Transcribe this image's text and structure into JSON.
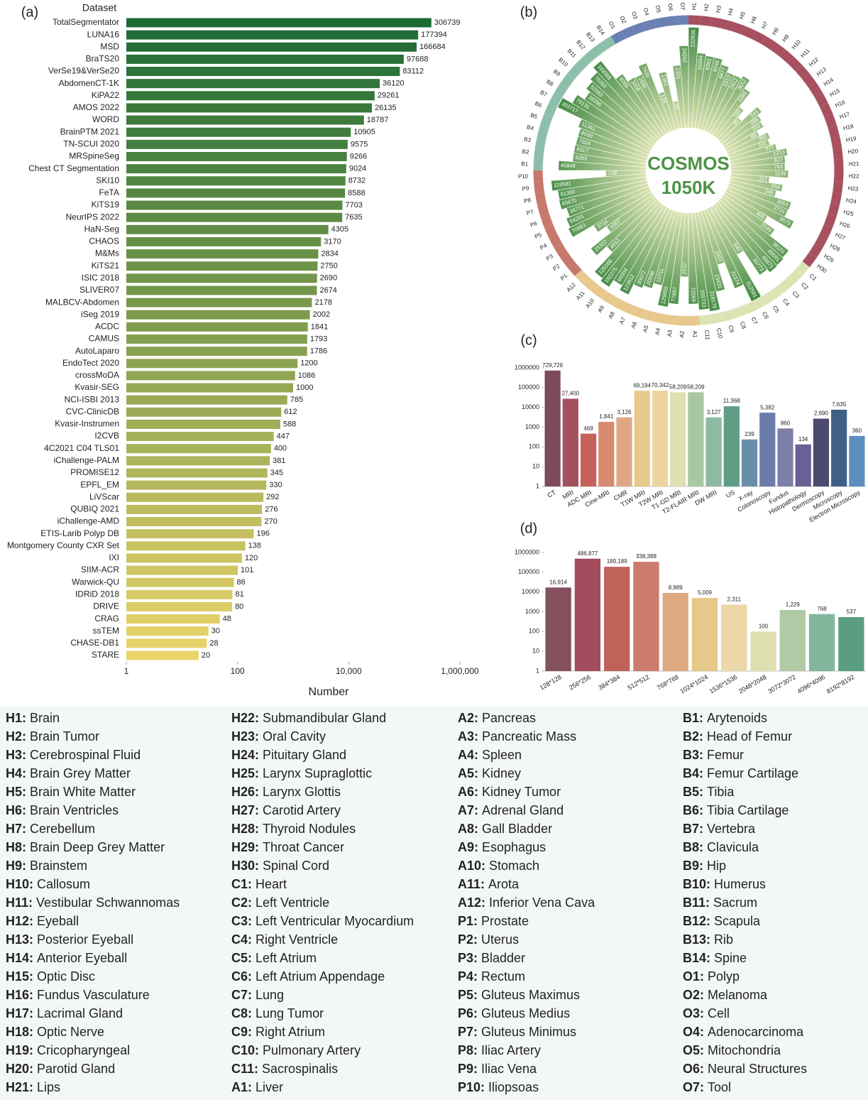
{
  "chart_data": [
    {
      "type": "hbar",
      "panel": "(a)",
      "title": "Dataset",
      "xlabel": "Number",
      "log": true,
      "categories": [
        "TotalSegmentator",
        "LUNA16",
        "MSD",
        "BraTS20",
        "VerSe19&VerSe20",
        "AbdomenCT-1K",
        "KiPA22",
        "AMOS 2022",
        "WORD",
        "BrainPTM 2021",
        "TN-SCUI 2020",
        "MRSpineSeg",
        "Chest CT Segmentation",
        "SKI10",
        "FeTA",
        "KiTS19",
        "NeurIPS 2022",
        "HaN-Seg",
        "CHAOS",
        "M&Ms",
        "KiTS21",
        "ISIC 2018",
        "SLIVER07",
        "MALBCV-Abdomen",
        "iSeg 2019",
        "ACDC",
        "CAMUS",
        "AutoLaparo",
        "EndoTect 2020",
        "crossMoDA",
        "Kvasir-SEG",
        "NCI-ISBI 2013",
        "CVC-ClinicDB",
        "Kvasir-Instrumen",
        "I2CVB",
        "4C2021 C04 TLS01",
        "iChallenge-PALM",
        "PROMISE12",
        "EPFL_EM",
        "LiVScar",
        "QUBIQ 2021",
        "iChallenge-AMD",
        "ETIS-Larib Polyp DB",
        "Montgomery County CXR Set",
        "IXI",
        "SIIM-ACR",
        "Warwick-QU",
        "IDRiD 2018",
        "DRIVE",
        "CRAG",
        "ssTEM",
        "CHASE-DB1",
        "STARE"
      ],
      "values": [
        306739,
        177394,
        166684,
        97688,
        83112,
        36120,
        29261,
        26135,
        18787,
        10905,
        9575,
        9266,
        9024,
        8732,
        8588,
        7703,
        7635,
        4305,
        3170,
        2834,
        2750,
        2690,
        2674,
        2178,
        2002,
        1841,
        1793,
        1786,
        1200,
        1086,
        1000,
        785,
        612,
        588,
        447,
        400,
        381,
        345,
        330,
        292,
        276,
        270,
        196,
        138,
        120,
        101,
        86,
        81,
        80,
        48,
        30,
        28,
        20
      ],
      "color_range": [
        "#1d6b35",
        "#ecd46a"
      ],
      "xlim": [
        1,
        1000000
      ],
      "xticks": [
        1,
        100,
        {
          "value": 10000,
          "label": "10,000"
        },
        {
          "value": 1000000,
          "label": "1,000,000"
        }
      ]
    },
    {
      "type": "radial",
      "panel": "(b)",
      "center_text": [
        "COSMOS",
        "1050K"
      ],
      "log": true,
      "categories": [
        "H1",
        "H2",
        "H3",
        "H4",
        "H5",
        "H6",
        "H7",
        "H8",
        "H9",
        "H10",
        "H11",
        "H12",
        "H13",
        "H14",
        "H15",
        "H16",
        "H17",
        "H18",
        "H19",
        "H20",
        "H21",
        "H22",
        "H23",
        "H24",
        "H25",
        "H26",
        "H27",
        "H28",
        "H29",
        "H30",
        "C1",
        "C2",
        "C3",
        "C4",
        "C5",
        "C6",
        "C7",
        "C8",
        "C9",
        "C10",
        "C11",
        "A1",
        "A2",
        "A3",
        "A4",
        "A5",
        "A6",
        "A7",
        "A8",
        "A9",
        "A10",
        "A11",
        "A12",
        "P1",
        "P2",
        "P3",
        "P4",
        "P5",
        "P6",
        "P7",
        "P8",
        "P9",
        "P10",
        "B1",
        "B2",
        "B3",
        "B4",
        "B5",
        "B6",
        "B7",
        "B8",
        "B9",
        "B10",
        "B11",
        "B12",
        "B13",
        "B14",
        "O1",
        "O2",
        "O3",
        "O4",
        "O5",
        "O6",
        "O7"
      ],
      "values": [
        232836,
        10394,
        8381,
        8246,
        4477,
        2312,
        2412,
        3612,
        1086,
        120,
        40,
        541,
        288,
        232,
        88,
        260,
        191,
        377,
        1213,
        827,
        763,
        1139,
        117,
        658,
        346,
        3003,
        2715,
        9575,
        400,
        2046,
        38131,
        45691,
        49871,
        30773,
        840,
        312581,
        31374,
        1003,
        23431,
        218176,
        155733,
        72069,
        2537,
        77897,
        125850,
        10711,
        20998,
        30072,
        123812,
        66554,
        182275,
        126168,
        4912,
        25322,
        1057,
        3734,
        70883,
        54255,
        34771,
        65675,
        61380,
        119581,
        138,
        46848,
        8393,
        8317,
        7924,
        8030,
        11361,
        303717,
        79131,
        28396,
        52083,
        76350,
        163069,
        9266,
        3008,
        2690,
        7635,
        134,
        1361,
        30,
        2301,
        24262
      ],
      "group_colors": {
        "H": "#a8505f",
        "C": "#dde4b4",
        "A": "#e8c88c",
        "P": "#c7776b",
        "B": "#8cbfaa",
        "O": "#6b80b4"
      },
      "color": "#3f8a42"
    },
    {
      "type": "bar",
      "panel": "(c)",
      "log": true,
      "categories": [
        "CT",
        "MRI",
        "ADC MRI",
        "Cine-MRI",
        "CMR",
        "T1W MRI",
        "T2W MRI",
        "T1-GD MRI",
        "T2-FLAIR MRI",
        "DW MRI",
        "US",
        "X-ray",
        "Colonoscopy",
        "Fundus",
        "Histopathology",
        "Dermoscopy",
        "Microscopy",
        "Electron Microscopy"
      ],
      "values": [
        729726,
        27400,
        469,
        1841,
        3126,
        69194,
        70342,
        58209,
        58209,
        3127,
        11368,
        239,
        5382,
        860,
        134,
        2690,
        7635,
        360
      ],
      "value_labels": [
        "729,726",
        "27,400",
        "469",
        "1,841",
        "3,126",
        "69,194",
        "70,342",
        "58,209",
        "58,209",
        "3,127",
        "11,368",
        "239",
        "5,382",
        "860",
        "134",
        "2,690",
        "7,635",
        "360"
      ],
      "colors": [
        "#7d4a5a",
        "#a24f5e",
        "#c5615a",
        "#d78a70",
        "#dfa885",
        "#e8c98c",
        "#ecd5a0",
        "#dde0b0",
        "#a9c7a3",
        "#8dbaa0",
        "#5f9d87",
        "#6a8ea8",
        "#6a7aab",
        "#7d7fa8",
        "#6b5f94",
        "#4c4a6e",
        "#3f5f87",
        "#5b8fbe"
      ],
      "ylim": [
        1,
        1000000
      ],
      "yticks": [
        1,
        10,
        100,
        1000,
        10000,
        100000,
        1000000
      ]
    },
    {
      "type": "bar",
      "panel": "(d)",
      "log": true,
      "categories": [
        "128*128",
        "256*256",
        "384*384",
        "512*512",
        "768*768",
        "1024*1024",
        "1536*1536",
        "2048*2048",
        "3072*3072",
        "4096*4096",
        "8192*8192"
      ],
      "values": [
        16914,
        486877,
        189189,
        338388,
        8989,
        5009,
        2311,
        100,
        1229,
        768,
        537
      ],
      "value_labels": [
        "16,914",
        "486,877",
        "189,189",
        "338,388",
        "8,989",
        "5,009",
        "2,311",
        "100",
        "1,229",
        "768",
        "537"
      ],
      "colors": [
        "#84505e",
        "#a24c5e",
        "#c1625a",
        "#cc7c6e",
        "#ddaa80",
        "#e5c88a",
        "#ebd8a6",
        "#dfe0b2",
        "#afcaa5",
        "#82b79e",
        "#5a9e80"
      ],
      "ylim": [
        1,
        1000000
      ],
      "yticks": [
        1,
        10,
        100,
        1000,
        10000,
        100000,
        1000000
      ]
    }
  ],
  "key": [
    {
      "code": "H1:",
      "name": "Brain"
    },
    {
      "code": "H2:",
      "name": "Brain Tumor"
    },
    {
      "code": "H3:",
      "name": "Cerebrospinal Fluid"
    },
    {
      "code": "H4:",
      "name": "Brain Grey Matter"
    },
    {
      "code": "H5:",
      "name": "Brain White Matter"
    },
    {
      "code": "H6:",
      "name": "Brain Ventricles"
    },
    {
      "code": "H7:",
      "name": "Cerebellum"
    },
    {
      "code": "H8:",
      "name": "Brain Deep Grey Matter"
    },
    {
      "code": "H9:",
      "name": "Brainstem"
    },
    {
      "code": "H10:",
      "name": "Callosum"
    },
    {
      "code": "H11:",
      "name": "Vestibular Schwannomas"
    },
    {
      "code": "H12:",
      "name": "Eyeball"
    },
    {
      "code": "H13:",
      "name": "Posterior Eyeball"
    },
    {
      "code": "H14:",
      "name": "Anterior Eyeball"
    },
    {
      "code": "H15:",
      "name": "Optic Disc"
    },
    {
      "code": "H16:",
      "name": "Fundus Vasculature"
    },
    {
      "code": "H17:",
      "name": "Lacrimal Gland"
    },
    {
      "code": "H18:",
      "name": "Optic Nerve"
    },
    {
      "code": "H19:",
      "name": "Cricopharyngeal"
    },
    {
      "code": "H20:",
      "name": "Parotid Gland"
    },
    {
      "code": "H21:",
      "name": "Lips"
    },
    {
      "code": "H22:",
      "name": "Submandibular Gland"
    },
    {
      "code": "H23:",
      "name": "Oral Cavity"
    },
    {
      "code": "H24:",
      "name": "Pituitary Gland"
    },
    {
      "code": "H25:",
      "name": "Larynx Supraglottic"
    },
    {
      "code": "H26:",
      "name": "Larynx Glottis"
    },
    {
      "code": "H27:",
      "name": "Carotid Artery"
    },
    {
      "code": "H28:",
      "name": "Thyroid Nodules"
    },
    {
      "code": "H29:",
      "name": "Throat Cancer"
    },
    {
      "code": "H30:",
      "name": "Spinal Cord"
    },
    {
      "code": "C1:",
      "name": "Heart"
    },
    {
      "code": "C2:",
      "name": "Left Ventricle"
    },
    {
      "code": "C3:",
      "name": "Left Ventricular Myocardium"
    },
    {
      "code": "C4:",
      "name": "Right Ventricle"
    },
    {
      "code": "C5:",
      "name": "Left Atrium"
    },
    {
      "code": "C6:",
      "name": "Left Atrium Appendage"
    },
    {
      "code": "C7:",
      "name": "Lung"
    },
    {
      "code": "C8:",
      "name": "Lung Tumor"
    },
    {
      "code": "C9:",
      "name": "Right Atrium"
    },
    {
      "code": "C10:",
      "name": "Pulmonary Artery"
    },
    {
      "code": "C11:",
      "name": "Sacrospinalis"
    },
    {
      "code": "A1:",
      "name": "Liver"
    },
    {
      "code": "A2:",
      "name": "Pancreas"
    },
    {
      "code": "A3:",
      "name": "Pancreatic Mass"
    },
    {
      "code": "A4:",
      "name": "Spleen"
    },
    {
      "code": "A5:",
      "name": "Kidney"
    },
    {
      "code": "A6:",
      "name": "Kidney Tumor"
    },
    {
      "code": "A7:",
      "name": "Adrenal Gland"
    },
    {
      "code": "A8:",
      "name": "Gall Bladder"
    },
    {
      "code": "A9:",
      "name": "Esophagus"
    },
    {
      "code": "A10:",
      "name": "Stomach"
    },
    {
      "code": "A11:",
      "name": "Arota"
    },
    {
      "code": "A12:",
      "name": "Inferior Vena Cava"
    },
    {
      "code": "P1:",
      "name": "Prostate"
    },
    {
      "code": "P2:",
      "name": "Uterus"
    },
    {
      "code": "P3:",
      "name": "Bladder"
    },
    {
      "code": "P4:",
      "name": "Rectum"
    },
    {
      "code": "P5:",
      "name": "Gluteus Maximus"
    },
    {
      "code": "P6:",
      "name": "Gluteus Medius"
    },
    {
      "code": "P7:",
      "name": "Gluteus Minimus"
    },
    {
      "code": "P8:",
      "name": "Iliac Artery"
    },
    {
      "code": "P9:",
      "name": "Iliac Vena"
    },
    {
      "code": "P10:",
      "name": "Iliopsoas"
    },
    {
      "code": "B1:",
      "name": "Arytenoids"
    },
    {
      "code": "B2:",
      "name": "Head of Femur"
    },
    {
      "code": "B3:",
      "name": "Femur"
    },
    {
      "code": "B4:",
      "name": "Femur Cartilage"
    },
    {
      "code": "B5:",
      "name": "Tibia"
    },
    {
      "code": "B6:",
      "name": "Tibia Cartilage"
    },
    {
      "code": "B7:",
      "name": "Vertebra"
    },
    {
      "code": "B8:",
      "name": "Clavicula"
    },
    {
      "code": "B9:",
      "name": "Hip"
    },
    {
      "code": "B10:",
      "name": "Humerus"
    },
    {
      "code": "B11:",
      "name": "Sacrum"
    },
    {
      "code": "B12:",
      "name": "Scapula"
    },
    {
      "code": "B13:",
      "name": "Rib"
    },
    {
      "code": "B14:",
      "name": "Spine"
    },
    {
      "code": "O1:",
      "name": "Polyp"
    },
    {
      "code": "O2:",
      "name": "Melanoma"
    },
    {
      "code": "O3:",
      "name": "Cell"
    },
    {
      "code": "O4:",
      "name": "Adenocarcinoma"
    },
    {
      "code": "O5:",
      "name": "Mitochondria"
    },
    {
      "code": "O6:",
      "name": "Neural Structures"
    },
    {
      "code": "O7:",
      "name": "Tool"
    }
  ]
}
